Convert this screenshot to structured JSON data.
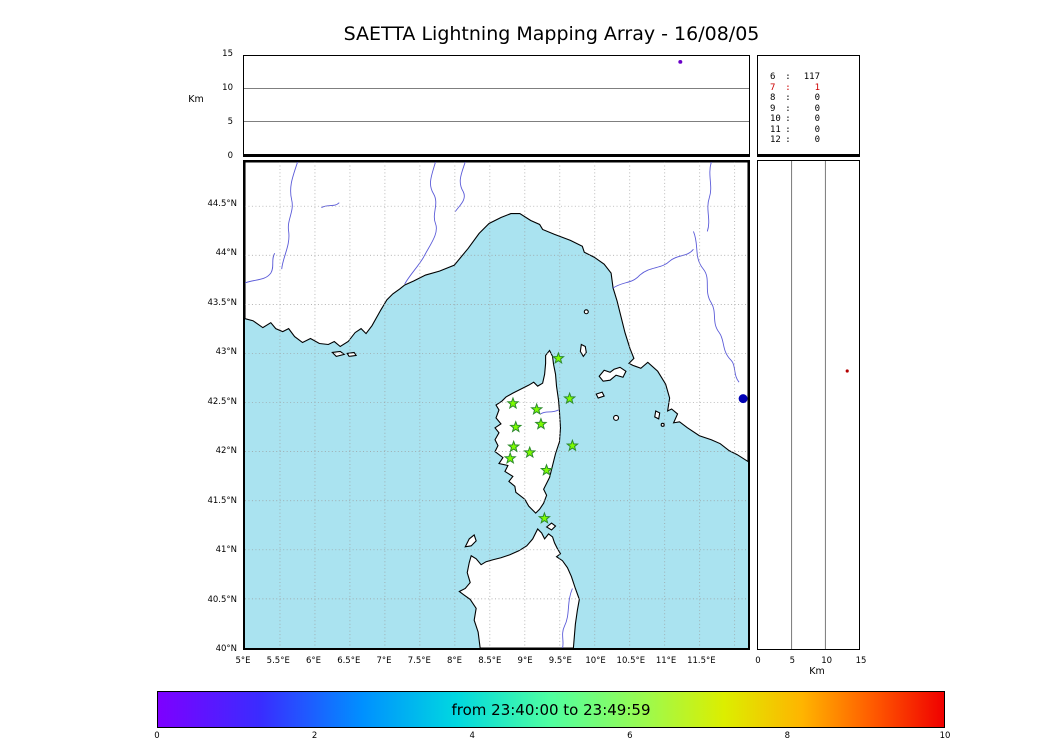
{
  "title": "SAETTA Lightning Mapping Array - 16/08/05",
  "top_panel": {
    "ylabel": "Km",
    "yticks": [
      "15",
      "10",
      "5",
      "0"
    ]
  },
  "stats_panel": {
    "rows": [
      {
        "station": "6",
        "sep": ":",
        "count": "117",
        "highlight": false
      },
      {
        "station": "7",
        "sep": ":",
        "count": "1",
        "highlight": true
      },
      {
        "station": "8",
        "sep": ":",
        "count": "0",
        "highlight": false
      },
      {
        "station": "9",
        "sep": ":",
        "count": "0",
        "highlight": false
      },
      {
        "station": "10",
        "sep": ":",
        "count": "0",
        "highlight": false
      },
      {
        "station": "11",
        "sep": ":",
        "count": "0",
        "highlight": false
      },
      {
        "station": "12",
        "sep": ":",
        "count": "0",
        "highlight": false
      }
    ]
  },
  "map_panel": {
    "lat_ticks": [
      "44.5°N",
      "44°N",
      "43.5°N",
      "43°N",
      "42.5°N",
      "42°N",
      "41.5°N",
      "41°N",
      "40.5°N",
      "40°N"
    ],
    "lon_ticks": [
      "5°E",
      "5.5°E",
      "6°E",
      "6.5°E",
      "7°E",
      "7.5°E",
      "8°E",
      "8.5°E",
      "9°E",
      "9.5°E",
      "10°E",
      "10.5°E",
      "11°E",
      "11.5°E"
    ]
  },
  "right_panel": {
    "xticks": [
      "0",
      "5",
      "10",
      "15"
    ],
    "xlabel": "Km"
  },
  "colorbar": {
    "label": "from 23:40:00 to 23:49:59",
    "ticks": [
      "0",
      "2",
      "4",
      "6",
      "8",
      "10"
    ],
    "gradient_stops": [
      "#7d00ff 0%",
      "#3a2cff 13%",
      "#0090ff 26%",
      "#00d8e0 38%",
      "#50ffa0 50%",
      "#9cfa4e 62%",
      "#dcee00 72%",
      "#ffb400 82%",
      "#ff5a00 91%",
      "#f00000 100%"
    ]
  },
  "chart_data": {
    "type": "scatter",
    "title": "SAETTA Lightning Mapping Array - 16/08/05",
    "figure": "lightning mapping array composite: altitude-time panel, station count panel, plan-view map, altitude-latitude panel, time colorbar",
    "time_window": {
      "from": "23:40:00",
      "to": "23:49:59"
    },
    "colorbar_axis": {
      "range": [
        0,
        10
      ],
      "ticks": [
        0,
        2,
        4,
        6,
        8,
        10
      ]
    },
    "altitude_axis_km": {
      "range": [
        0,
        15
      ],
      "ticks": [
        0,
        5,
        10,
        15
      ],
      "gridlines": [
        5,
        10
      ]
    },
    "map_extent": {
      "lon": [
        5.0,
        12.19
      ],
      "lat": [
        40.0,
        44.95
      ]
    },
    "map_grid_step_deg": 0.5,
    "station_source_counts": {
      "6": 117,
      "7": 1,
      "8": 0,
      "9": 0,
      "10": 0,
      "11": 0,
      "12": 0
    },
    "highlighted_station_row": "7",
    "lma_stations_lonlat": [
      [
        9.48,
        42.95
      ],
      [
        8.83,
        42.49
      ],
      [
        9.17,
        42.43
      ],
      [
        9.64,
        42.54
      ],
      [
        8.87,
        42.25
      ],
      [
        9.23,
        42.28
      ],
      [
        8.84,
        42.05
      ],
      [
        9.68,
        42.06
      ],
      [
        8.79,
        41.93
      ],
      [
        9.07,
        41.99
      ],
      [
        9.31,
        41.81
      ],
      [
        9.28,
        41.32
      ]
    ],
    "sources": {
      "map_point": {
        "lon": 12.12,
        "lat": 42.54,
        "color": "#0000b4",
        "radius_px": 4.5
      },
      "time_altitude_point": {
        "t_frac": 0.864,
        "alt_km": 14.1,
        "color": "#6a00c8",
        "radius_px": 2
      },
      "lat_altitude_point": {
        "alt_km": 13.25,
        "lat": 42.82,
        "color": "#b40000",
        "radius_px": 1.6
      }
    },
    "colors": {
      "sea": "#aae3f0",
      "land": "#ffffff",
      "coast": "#000000",
      "river": "#5b5bd8",
      "station_fill": "#7cfc00",
      "station_edge": "#2c8a2c",
      "grid": "#9a9a9a",
      "panel_grid": "#555555",
      "highlight": "#cc0000"
    }
  }
}
